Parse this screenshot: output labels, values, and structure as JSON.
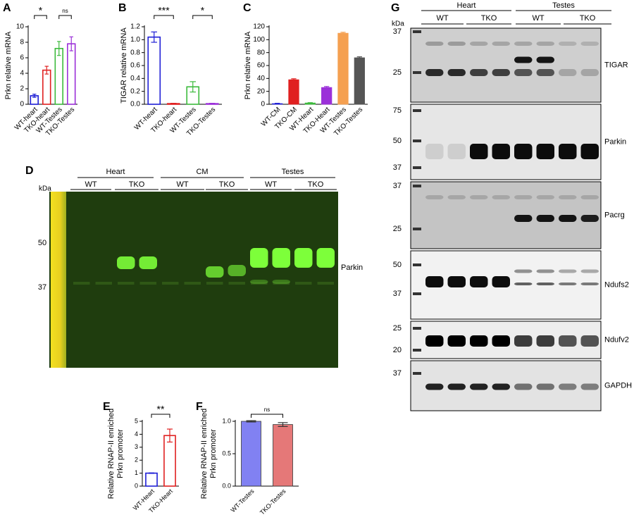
{
  "chart_data": [
    {
      "type": "bar",
      "label": "A",
      "ylabel": "Prkn relative mRNA",
      "categories": [
        "WT-heart",
        "TKO-heart",
        "WT-Testes",
        "TKO-Testes"
      ],
      "values": [
        1.1,
        4.4,
        7.2,
        7.8
      ],
      "errors": [
        0.2,
        0.5,
        0.9,
        0.9
      ],
      "colors": [
        "#1f1fd6",
        "#e02020",
        "#3cba3c",
        "#9b30d9"
      ],
      "bar_style": "outline",
      "ylim": [
        0,
        10
      ],
      "yticks": [
        0,
        2,
        4,
        6,
        8,
        10
      ],
      "annotations": [
        "*",
        "ns"
      ]
    },
    {
      "type": "bar",
      "label": "B",
      "ylabel": "TIGAR relative mRNA",
      "categories": [
        "WT-heart",
        "TKO-heart",
        "WT-Testes",
        "TKO-Testes"
      ],
      "values": [
        1.04,
        0.01,
        0.27,
        0.01
      ],
      "errors": [
        0.08,
        0.005,
        0.08,
        0.005
      ],
      "colors": [
        "#1f1fd6",
        "#e02020",
        "#3cba3c",
        "#9b30d9"
      ],
      "bar_style": "outline",
      "ylim": [
        0,
        1.2
      ],
      "yticks": [
        {
          "value": 0,
          "label": "0.0"
        },
        0.2,
        0.4,
        0.6,
        0.8,
        {
          "value": 1,
          "label": "1.0"
        },
        1.2
      ],
      "annotations": [
        "***",
        "*"
      ]
    },
    {
      "type": "bar",
      "label": "C",
      "ylabel": "Prkn relative mRNA",
      "categories": [
        "WT-CM",
        "TKO-CM",
        "WT-Heart",
        "TKO-Heart",
        "WT-Testes",
        "TKO-Testes"
      ],
      "values": [
        1,
        38,
        2,
        26,
        110,
        72
      ],
      "errors": [
        0.5,
        1.5,
        0.5,
        1.5,
        1.5,
        1.5
      ],
      "colors": [
        "#1f1fd6",
        "#e02020",
        "#3cba3c",
        "#9b30d9",
        "#f5a050",
        "#555555"
      ],
      "bar_style": "filled",
      "ylim": [
        0,
        120
      ],
      "yticks": [
        0,
        20,
        40,
        60,
        80,
        100,
        120
      ]
    },
    {
      "type": "bar",
      "label": "E",
      "ylabel": [
        "Relative RNAP-II enriched",
        "Prkn promoter"
      ],
      "categories": [
        "WT-Heart",
        "TKO-Heart"
      ],
      "values": [
        1.0,
        3.9
      ],
      "errors": [
        0.02,
        0.5
      ],
      "colors": [
        "#1f1fd6",
        "#e02020"
      ],
      "bar_style": "outline",
      "ylim": [
        0,
        5
      ],
      "yticks": [
        0,
        1,
        2,
        3,
        4,
        5
      ],
      "annotations": [
        "**"
      ]
    },
    {
      "type": "bar",
      "label": "F",
      "ylabel": [
        "Relative RNAP-II enriched",
        "Prkn promoter"
      ],
      "categories": [
        "WT-Testes",
        "TKO-Testes"
      ],
      "values": [
        1.0,
        0.95
      ],
      "errors": [
        0.01,
        0.03
      ],
      "colors": [
        "#6b6bf0",
        "#e06060"
      ],
      "bar_style": "translucent",
      "ylim": [
        0,
        1
      ],
      "yticks": [
        {
          "value": 0,
          "label": "0.0"
        },
        0.5,
        {
          "value": 1,
          "label": "1.0"
        }
      ],
      "annotations": [
        "ns"
      ]
    }
  ],
  "blots": {
    "D": {
      "label": "D",
      "unit": "kDa",
      "groups": [
        "Heart",
        "CM",
        "Testes"
      ],
      "lanes": [
        "WT",
        "TKO",
        "WT",
        "TKO",
        "WT",
        "TKO"
      ],
      "markers": [
        "50",
        "37"
      ],
      "protein": "Parkin"
    },
    "G": {
      "label": "G",
      "unit": "kDa",
      "groups": [
        "Heart",
        "Testes"
      ],
      "lanes": [
        "WT",
        "TKO",
        "WT",
        "TKO"
      ],
      "panels": [
        {
          "protein": "TIGAR",
          "markers": [
            "37",
            "25"
          ]
        },
        {
          "protein": "Parkin",
          "markers": [
            "75",
            "50",
            "37"
          ]
        },
        {
          "protein": "Pacrg",
          "markers": [
            "37",
            "25"
          ]
        },
        {
          "protein": "Ndufs2",
          "markers": [
            "50",
            "37"
          ]
        },
        {
          "protein": "Ndufv2",
          "markers": [
            "25",
            "20"
          ]
        },
        {
          "protein": "GAPDH",
          "markers": [
            "37"
          ]
        }
      ]
    }
  }
}
